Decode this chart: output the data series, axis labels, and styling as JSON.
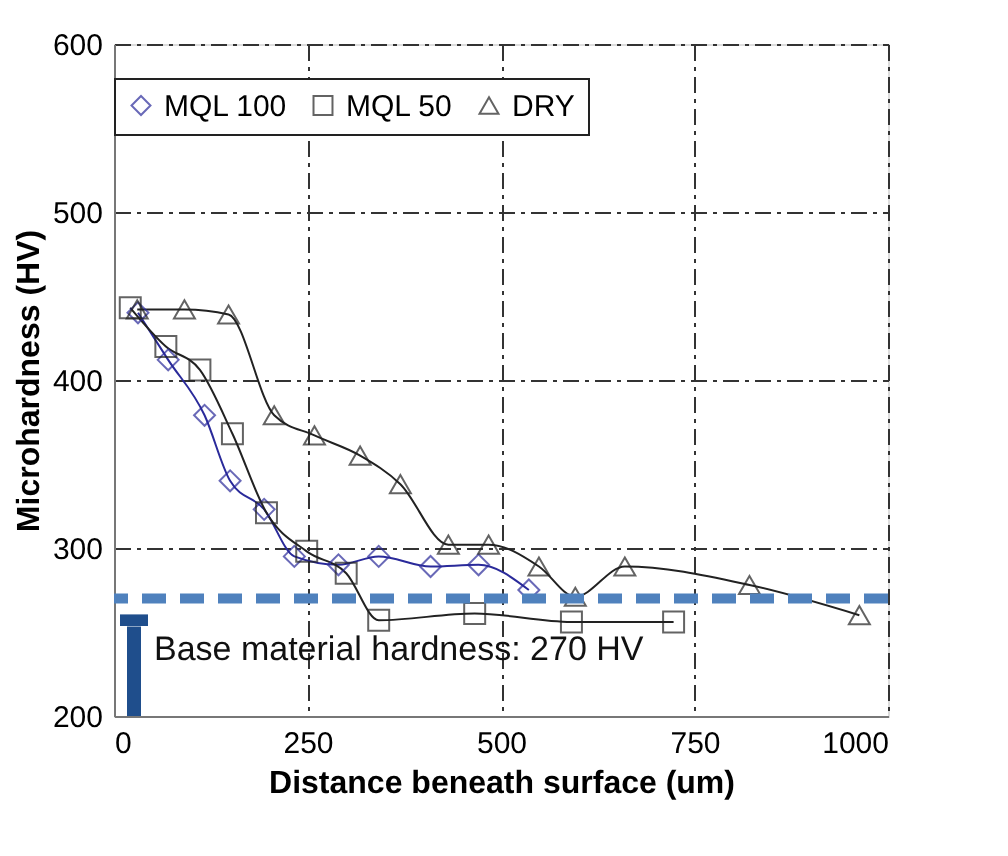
{
  "chart_data": {
    "type": "line",
    "xlabel": "Distance beneath surface (um)",
    "ylabel": "Microhardness (HV)",
    "xlim": [
      0,
      1000
    ],
    "xticks": [
      0,
      250,
      500,
      750,
      {
        "value": 1000,
        "label": "1000"
      }
    ],
    "ylim": [
      200,
      600
    ],
    "yticks": [
      200,
      300,
      400,
      500,
      600
    ],
    "grid": true,
    "legend": "top",
    "line_style": "solid",
    "series": [
      {
        "name": "MQL 100",
        "color": "#2a2a9a",
        "marker": "diamond",
        "x": [
          31,
          70,
          117,
          150,
          194,
          233,
          290,
          342,
          409,
          471,
          536
        ],
        "values": [
          440,
          412,
          379,
          340,
          323,
          295,
          290,
          295,
          289,
          290,
          275
        ]
      },
      {
        "name": "MQL 50",
        "color": "#222222",
        "marker": "square",
        "x": [
          21,
          67,
          111,
          153,
          197,
          249,
          300,
          342,
          466,
          591,
          723
        ],
        "values": [
          443,
          420,
          406,
          368,
          321,
          298,
          285,
          257,
          261,
          256,
          256
        ]
      },
      {
        "name": "DRY",
        "color": "#222222",
        "marker": "triangle",
        "x": [
          30,
          91,
          148,
          207,
          259,
          318,
          370,
          432,
          484,
          549,
          596,
          660,
          821,
          963
        ],
        "values": [
          442,
          442,
          439,
          379,
          367,
          355,
          338,
          302,
          302,
          289,
          271,
          289,
          278,
          260
        ]
      }
    ],
    "ref_lines": [
      {
        "axis": "y",
        "value": 270,
        "label": "Base material hardness: 270 HV",
        "color": "#4f81bd",
        "line_style": "dashed"
      }
    ]
  }
}
